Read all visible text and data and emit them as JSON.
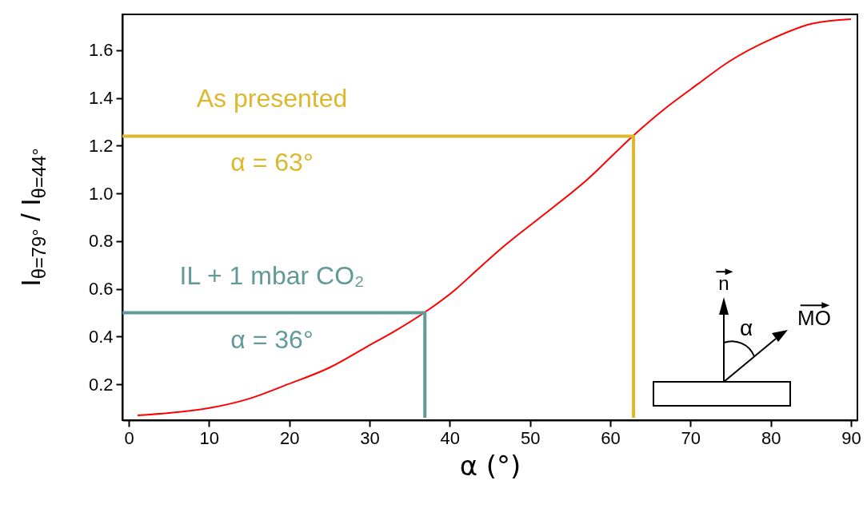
{
  "chart_data": {
    "type": "line",
    "xlabel": "α (°)",
    "ylabel": "I$_{θ=79°}$ / I$_{θ=44°}$",
    "xlim": [
      -0.8,
      90.8
    ],
    "ylim": [
      0.05,
      1.75
    ],
    "xticks": [
      0,
      10,
      20,
      30,
      40,
      50,
      60,
      70,
      80,
      90
    ],
    "yticks": [
      0.2,
      0.4,
      0.6,
      0.8,
      {
        "value": 1,
        "label": "1.0"
      },
      1.2,
      1.4,
      1.6
    ],
    "series": [
      {
        "color": "#ff0000",
        "x": [
          1.1,
          5,
          9.9,
          15,
          19.8,
          25,
          29.8,
          33,
          36.8,
          40.8,
          43.1,
          46.8,
          51.3,
          57.2,
          62.8,
          67,
          71.0,
          74.7,
          80.3,
          85.0,
          90.0
        ],
        "values": [
          0.07,
          0.08,
          0.1,
          0.14,
          0.2,
          0.27,
          0.36,
          0.42,
          0.5,
          0.6,
          0.67,
          0.78,
          0.9,
          1.06,
          1.24,
          1.36,
          1.46,
          1.55,
          1.65,
          1.71,
          1.73
        ]
      },
      {
        "color": "#dbb82c",
        "x": [
          -0.8,
          62.9,
          62.9
        ],
        "values": [
          1.24,
          1.24,
          0.06
        ]
      },
      {
        "color": "#629a98",
        "x": [
          -0.8,
          36.9,
          36.9
        ],
        "values": [
          0.5,
          0.5,
          0.06
        ]
      }
    ],
    "annotations": [
      "As presented",
      "α = 63°",
      "IL + 1 mbar CO₂",
      "α = 36°",
      "n",
      "α",
      "MO"
    ]
  }
}
